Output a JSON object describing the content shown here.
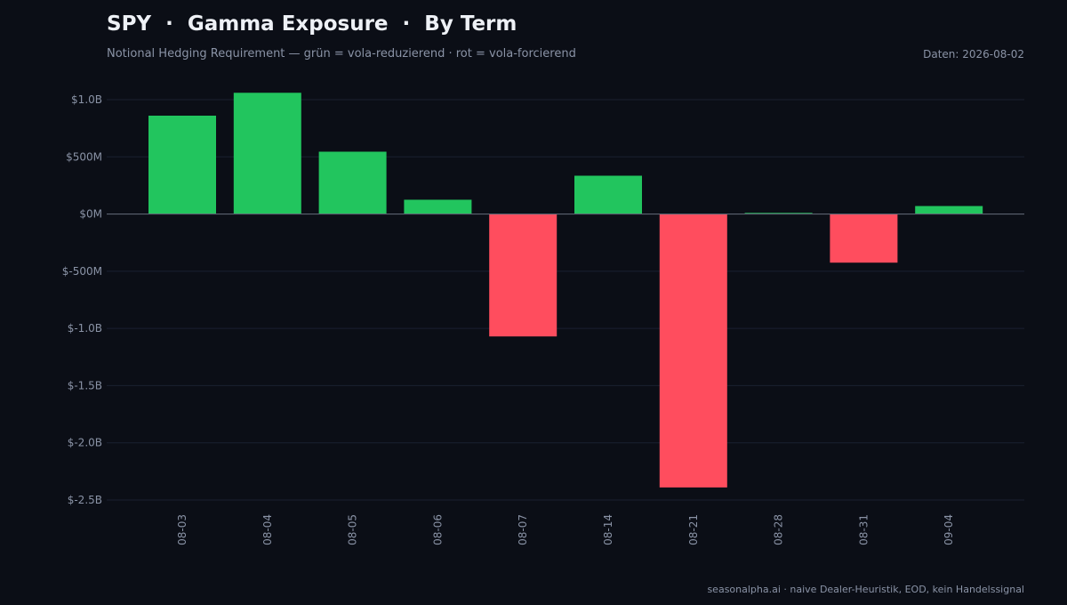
{
  "header": {
    "title": "SPY  ·  Gamma Exposure  ·  By Term",
    "subtitle": "Notional Hedging Requirement — grün = vola-reduzierend · rot = vola-forcierend",
    "date": "Daten: 2026-08-02"
  },
  "footer": {
    "text": "seasonalpha.ai · naive Dealer-Heuristik, EOD, kein Handelssignal"
  },
  "colors": {
    "background": "#0b0e16",
    "positive": "#22c55e",
    "negative": "#ff4d5e",
    "grid": "#1b2030",
    "zero_line": "#5c6270",
    "text_muted": "#8a93a6"
  },
  "chart_data": {
    "type": "bar",
    "title": "SPY  ·  Gamma Exposure  ·  By Term",
    "xlabel": "",
    "ylabel": "",
    "categories": [
      "08-03",
      "08-04",
      "08-05",
      "08-06",
      "08-07",
      "08-14",
      "08-21",
      "08-28",
      "08-31",
      "09-04"
    ],
    "values": [
      860000000,
      1060000000,
      545000000,
      125000000,
      -1070000000,
      335000000,
      -2390000000,
      10000000,
      -425000000,
      70000000
    ],
    "ylim": [
      -2500000000,
      1100000000
    ],
    "yticks": [
      1000000000,
      500000000,
      0,
      -500000000,
      -1000000000,
      -1500000000,
      -2000000000,
      -2500000000
    ],
    "ytick_labels": [
      "$1.0B",
      "$500M",
      "$0M",
      "$-500M",
      "$-1.0B",
      "$-1.5B",
      "$-2.0B",
      "$-2.5B"
    ],
    "grid": true,
    "legend": "none"
  }
}
